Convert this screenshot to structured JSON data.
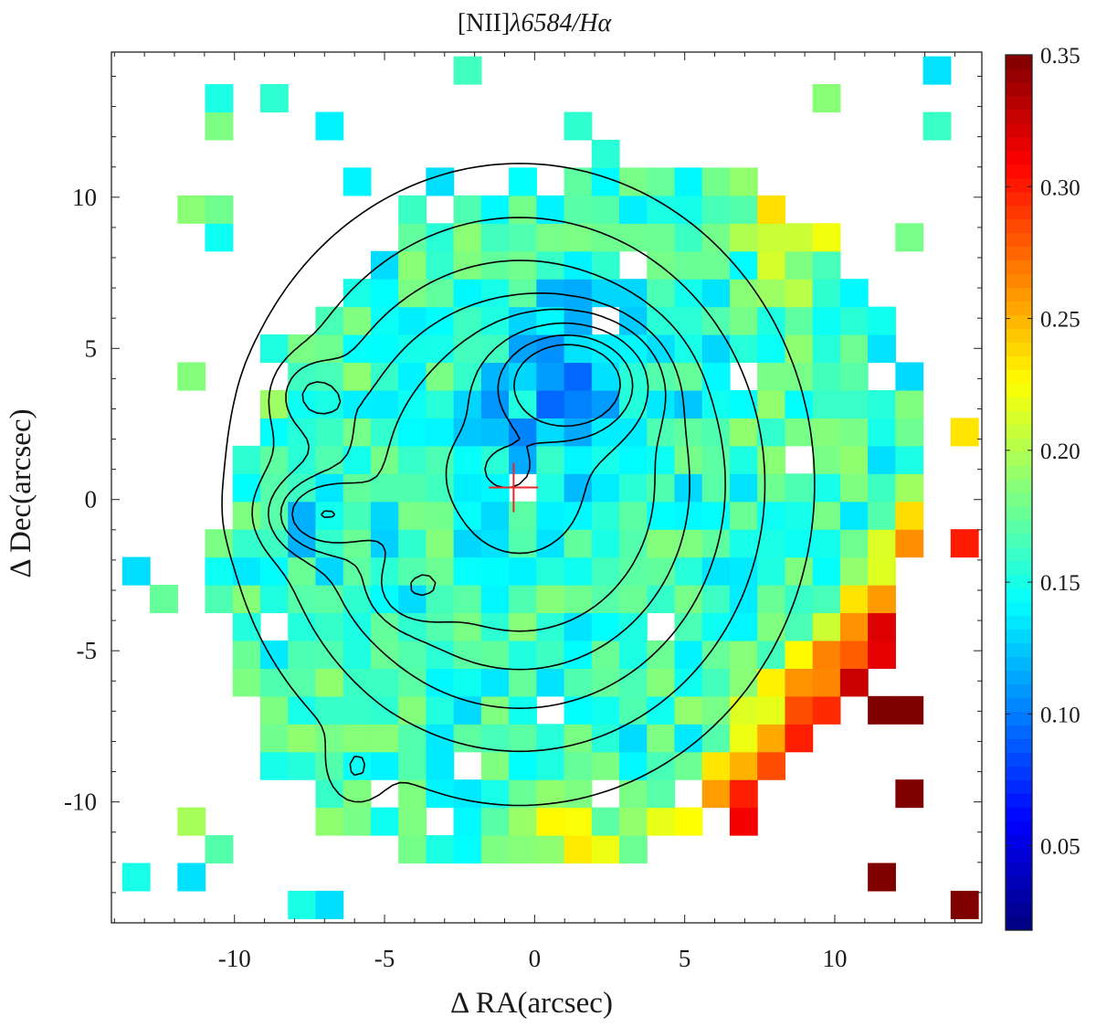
{
  "chart_data": {
    "type": "heatmap",
    "title_main": "[NII]",
    "title_lambda": "λ6584/H",
    "title_alpha": "α",
    "xlabel": "Δ RA(arcsec)",
    "ylabel": "Δ Dec(arcsec)",
    "xlim": [
      -14.1,
      14.9
    ],
    "ylim": [
      -14.0,
      14.8
    ],
    "x_ticks": [
      -10,
      -5,
      0,
      5,
      10
    ],
    "x_tick_labels": [
      "-10",
      "-5",
      "0",
      "5",
      "10"
    ],
    "y_ticks": [
      -10,
      -5,
      0,
      5,
      10
    ],
    "y_tick_labels": [
      "-10",
      "-5",
      "0",
      "5",
      "10"
    ],
    "pixel_size_arcsec": 0.92,
    "colorbar": {
      "colormap": "jet",
      "range": [
        0.018,
        0.35
      ],
      "ticks": [
        0.05,
        0.1,
        0.15,
        0.2,
        0.25,
        0.3,
        0.35
      ],
      "tick_labels": [
        "0.05",
        "0.10",
        "0.15",
        "0.20",
        "0.25",
        "0.30",
        "0.35"
      ]
    },
    "nucleus_marker": {
      "type": "cross",
      "x": -0.7,
      "y": 0.4,
      "color": "#e8282a"
    },
    "contour_peak": {
      "x": 1.2,
      "y": 3.9
    },
    "notes": "Map of the [NII]λ6584/Hα flux ratio with Hα flux contours (black) overlaid; values ~0.10-0.18 over the central star-forming region, rising to >0.35 at the south-east edges."
  }
}
